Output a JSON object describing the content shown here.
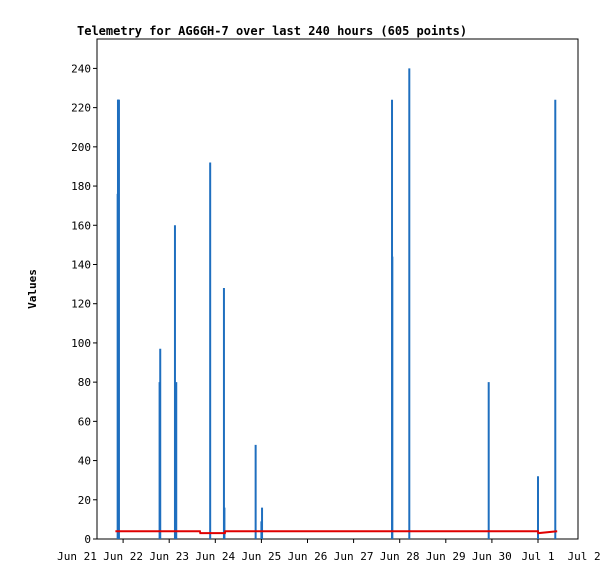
{
  "chart_data": {
    "type": "line",
    "title": "Telemetry for AG6GH-7 over last 240 hours (605 points)",
    "xlabel": "",
    "ylabel": "Values",
    "ylim": [
      0,
      255
    ],
    "yticks": [
      0,
      20,
      40,
      60,
      80,
      100,
      120,
      140,
      160,
      180,
      200,
      220,
      240
    ],
    "xlim_days": [
      0,
      10
    ],
    "xticks": [
      "Jun 21",
      "Jun 22",
      "Jun 23",
      "Jun 24",
      "Jun 25",
      "Jun 26",
      "Jun 27",
      "Jun 28",
      "Jun 29",
      "Jun 30",
      "Jul 1",
      "Jul 2"
    ],
    "grid": false,
    "series": [
      {
        "color": "#1f6fbf",
        "kind": "spikes",
        "x": [
          "Jun 21 21:10",
          "Jun 21 21:20",
          "Jun 21 21:25",
          "Jun 21 21:30",
          "Jun 21 21:40",
          "Jun 21 21:50",
          "Jun 22 19:00",
          "Jun 22 19:20",
          "Jun 23 03:00",
          "Jun 23 03:40",
          "Jun 23 21:20",
          "Jun 24 04:30",
          "Jun 24 04:45",
          "Jun 24 21:00",
          "Jun 25 00:00",
          "Jun 25 00:20",
          "Jun 27 20:00",
          "Jun 27 20:10",
          "Jun 28 05:00",
          "Jun 29 22:20",
          "Jul 1 00:00",
          "Jul 1 09:00"
        ],
        "y": [
          176,
          224,
          224,
          224,
          224,
          224,
          80,
          97,
          160,
          80,
          192,
          128,
          16,
          48,
          9,
          16,
          224,
          144,
          240,
          80,
          32,
          224
        ]
      },
      {
        "color": "#e00000",
        "kind": "line",
        "x": [
          "Jun 21 20:00",
          "Jun 23 16:00",
          "Jun 23 16:10",
          "Jun 24 05:00",
          "Jun 24 05:10",
          "Jun 29 23:00",
          "Jun 29 23:10",
          "Jul 1 00:00",
          "Jul 1 00:10",
          "Jul 1 10:00"
        ],
        "y": [
          4,
          4,
          3,
          3,
          4,
          4,
          4,
          4,
          3,
          4
        ]
      }
    ]
  }
}
